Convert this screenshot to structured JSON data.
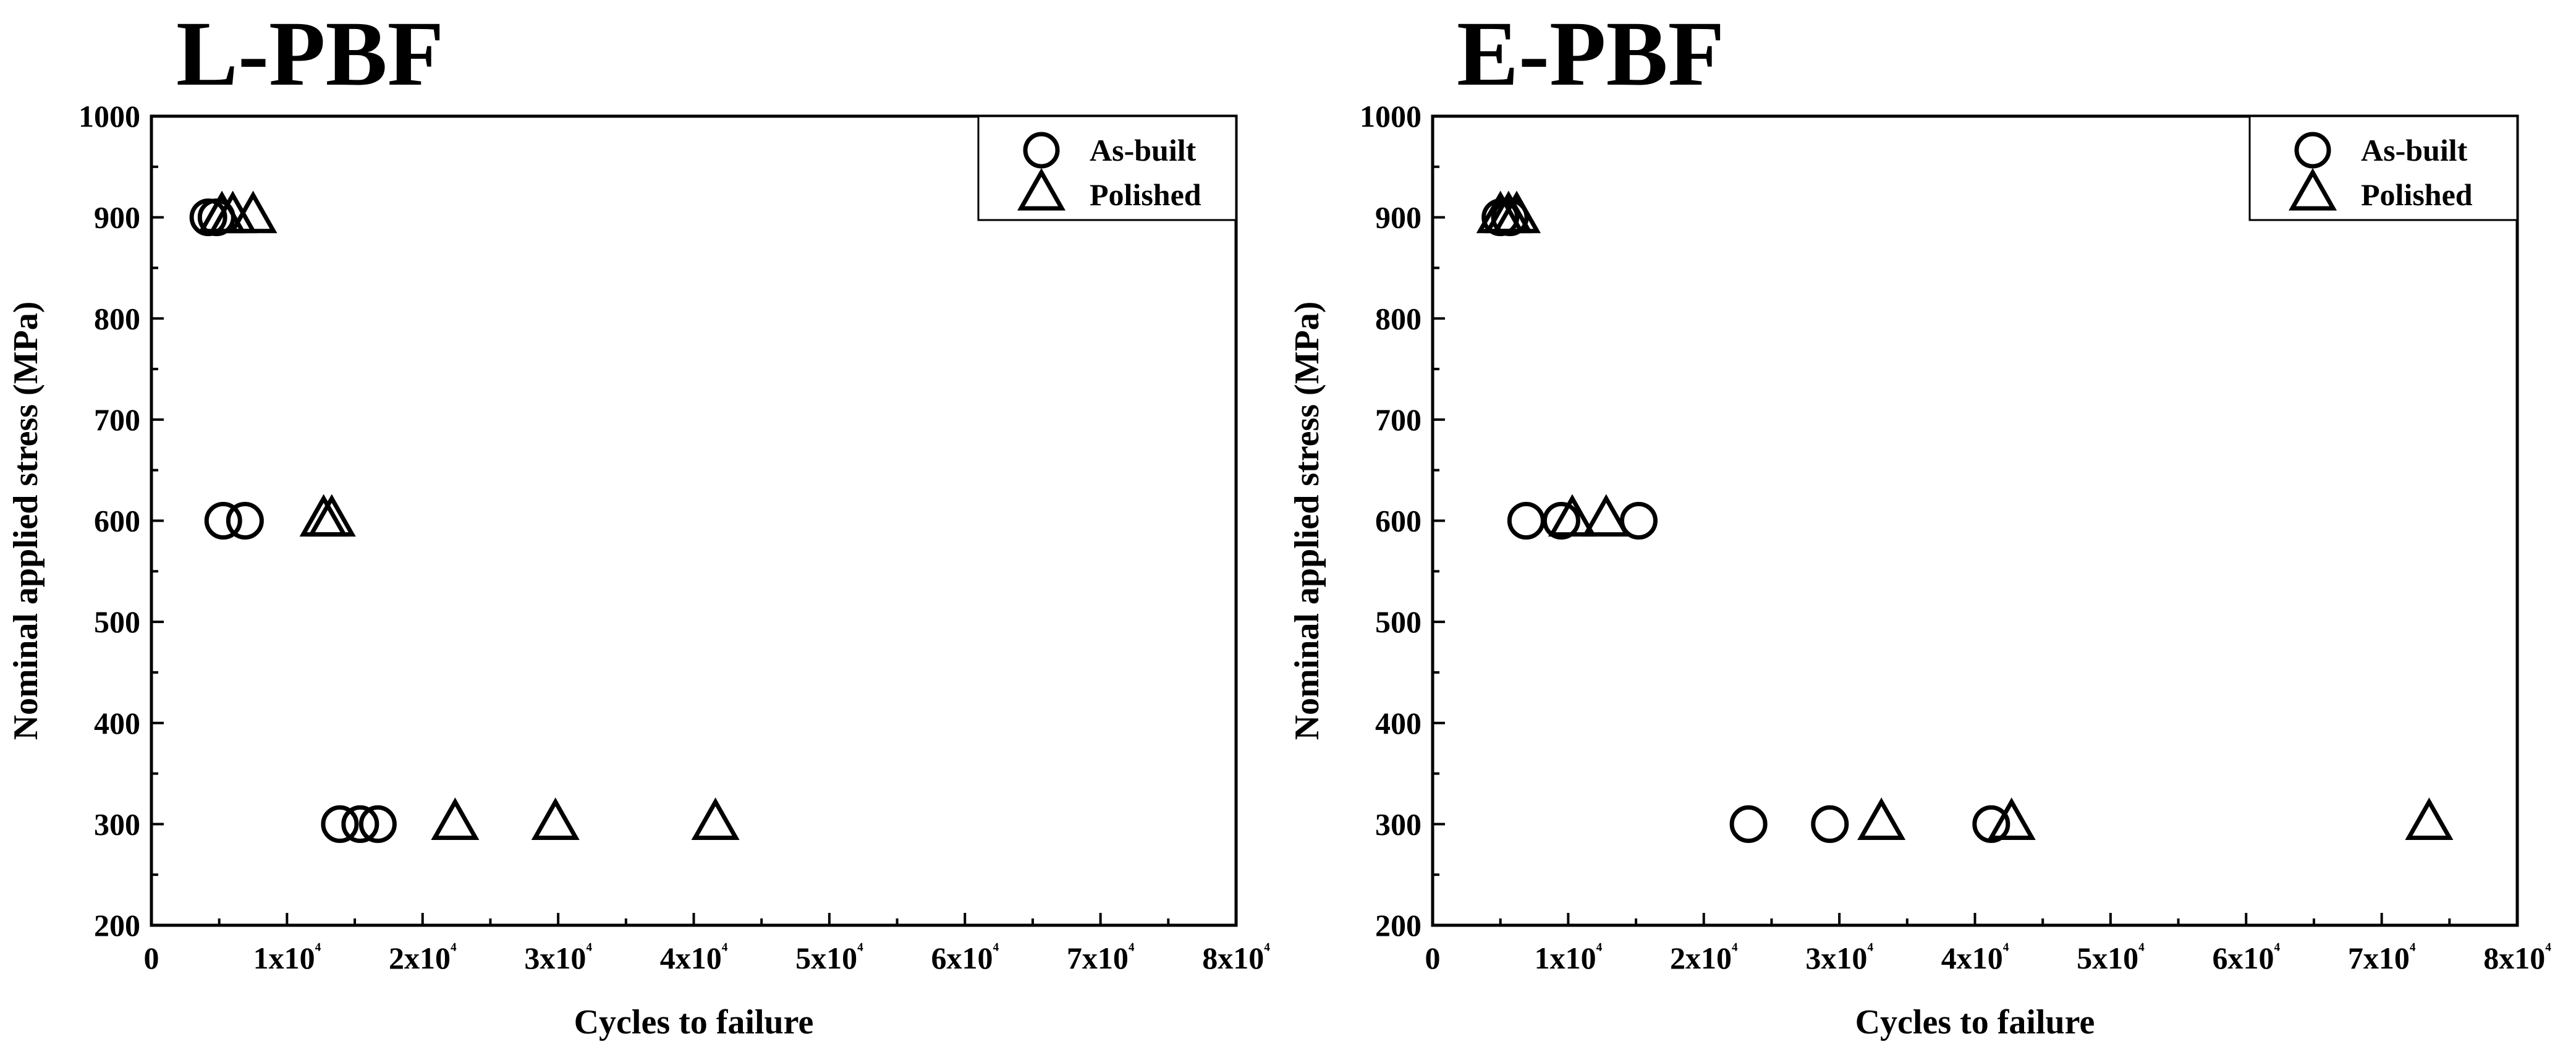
{
  "chart_data": [
    {
      "type": "scatter",
      "title": "L-PBF",
      "xlabel": "Cycles to failure",
      "ylabel": "Nominal applied stress (MPa)",
      "xlim": [
        0,
        80000
      ],
      "ylim": [
        200,
        1000
      ],
      "x_ticks": [
        "0",
        "1x10⁴",
        "2x10⁴",
        "3x10⁴",
        "4x10⁴",
        "5x10⁴",
        "6x10⁴",
        "7x10⁴",
        "8x10⁴"
      ],
      "y_ticks": [
        "200",
        "300",
        "400",
        "500",
        "600",
        "700",
        "800",
        "900",
        "1000"
      ],
      "legend_position": "top-right",
      "series": [
        {
          "name": "As-built",
          "marker": "circle",
          "points": [
            [
              4200,
              900
            ],
            [
              4800,
              900
            ],
            [
              5300,
              600
            ],
            [
              6900,
              600
            ],
            [
              13900,
              300
            ],
            [
              15400,
              300
            ],
            [
              16700,
              300
            ]
          ]
        },
        {
          "name": "Polished",
          "marker": "triangle",
          "points": [
            [
              5200,
              900
            ],
            [
              6000,
              900
            ],
            [
              7500,
              900
            ],
            [
              12700,
              600
            ],
            [
              13300,
              600
            ],
            [
              22400,
              300
            ],
            [
              29800,
              300
            ],
            [
              41600,
              300
            ]
          ]
        }
      ]
    },
    {
      "type": "scatter",
      "title": "E-PBF",
      "xlabel": "Cycles to failure",
      "ylabel": "Nominal applied stress (MPa)",
      "xlim": [
        0,
        80000
      ],
      "ylim": [
        200,
        1000
      ],
      "x_ticks": [
        "0",
        "1x10⁴",
        "2x10⁴",
        "3x10⁴",
        "4x10⁴",
        "5x10⁴",
        "6x10⁴",
        "7x10⁴",
        "8x10⁴"
      ],
      "y_ticks": [
        "200",
        "300",
        "400",
        "500",
        "600",
        "700",
        "800",
        "900",
        "1000"
      ],
      "legend_position": "top-right",
      "series": [
        {
          "name": "As-built",
          "marker": "circle",
          "points": [
            [
              5000,
              900
            ],
            [
              5700,
              900
            ],
            [
              6900,
              600
            ],
            [
              9500,
              600
            ],
            [
              15200,
              600
            ],
            [
              23300,
              300
            ],
            [
              29300,
              300
            ],
            [
              41200,
              300
            ]
          ]
        },
        {
          "name": "Polished",
          "marker": "triangle",
          "points": [
            [
              5000,
              900
            ],
            [
              5600,
              900
            ],
            [
              6200,
              900
            ],
            [
              10300,
              600
            ],
            [
              12800,
              600
            ],
            [
              33100,
              300
            ],
            [
              42700,
              300
            ],
            [
              73500,
              300
            ]
          ]
        }
      ]
    }
  ]
}
